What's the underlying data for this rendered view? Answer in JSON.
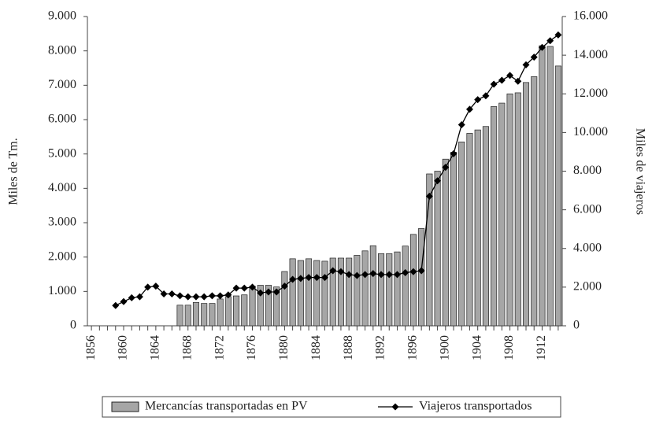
{
  "chart_data": {
    "type": "bar-line",
    "y_label": "Miles de Tm.",
    "y2_label": "Miles de viajeros",
    "categories": [
      "1856",
      null,
      null,
      null,
      "1860",
      null,
      null,
      null,
      "1864",
      null,
      null,
      null,
      "1868",
      null,
      null,
      null,
      "1872",
      null,
      null,
      null,
      "1876",
      null,
      null,
      null,
      "1880",
      null,
      null,
      null,
      "1884",
      null,
      null,
      null,
      "1888",
      null,
      null,
      null,
      "1892",
      null,
      null,
      null,
      "1896",
      null,
      null,
      null,
      "1900",
      null,
      null,
      null,
      "1904",
      null,
      null,
      null,
      "1908",
      null,
      null,
      null,
      "1912",
      null,
      null
    ],
    "series": [
      {
        "name": "Mercancías transportadas en PV",
        "type": "bar",
        "color": "#a6a6a6",
        "values": [
          null,
          null,
          null,
          null,
          null,
          null,
          null,
          null,
          null,
          null,
          null,
          600,
          600,
          680,
          650,
          650,
          780,
          850,
          870,
          900,
          1150,
          1180,
          1180,
          1130,
          1580,
          1950,
          1900,
          1950,
          1900,
          1880,
          1970,
          1970,
          1970,
          2050,
          2180,
          2330,
          2100,
          2100,
          2150,
          2320,
          2660,
          2830,
          4420,
          4500,
          4850,
          5050,
          5350,
          5600,
          5700,
          5800,
          6380,
          6480,
          6750,
          6780,
          7080,
          7250,
          8150,
          8130,
          7560
        ]
      },
      {
        "name": "Viajeros transportados",
        "type": "line",
        "color": "#000000",
        "axis": "y2",
        "values": [
          null,
          null,
          null,
          1050,
          1250,
          1450,
          1500,
          2000,
          2050,
          1650,
          1650,
          1550,
          1500,
          1500,
          1500,
          1550,
          1550,
          1600,
          1950,
          1950,
          2000,
          1700,
          1750,
          1750,
          2050,
          2400,
          2450,
          2500,
          2500,
          2500,
          2850,
          2800,
          2650,
          2600,
          2650,
          2700,
          2650,
          2650,
          2650,
          2750,
          2800,
          2850,
          6700,
          7500,
          8200,
          8900,
          10400,
          11200,
          11700,
          11900,
          12500,
          12700,
          12950,
          12650,
          13500,
          13900,
          14400,
          14750,
          15050
        ]
      }
    ],
    "ylim": [
      0,
      9000
    ],
    "yticks": [
      0,
      {
        "value": 1000,
        "label": "1.000"
      },
      {
        "value": 2000,
        "label": "2.000"
      },
      {
        "value": 3000,
        "label": "3.000"
      },
      {
        "value": 4000,
        "label": "4.000"
      },
      {
        "value": 5000,
        "label": "5.000"
      },
      {
        "value": 6000,
        "label": "6.000"
      },
      {
        "value": 7000,
        "label": "7.000"
      },
      {
        "value": 8000,
        "label": "8.000"
      },
      {
        "value": 9000,
        "label": "9.000"
      }
    ],
    "y2lim": [
      0,
      16000
    ],
    "y2ticks": [
      0,
      {
        "value": 2000,
        "label": "2.000"
      },
      {
        "value": 4000,
        "label": "4.000"
      },
      {
        "value": 6000,
        "label": "6.000"
      },
      {
        "value": 8000,
        "label": "8.000"
      },
      {
        "value": 10000,
        "label": "10.000"
      },
      {
        "value": 12000,
        "label": "12.000"
      },
      {
        "value": 14000,
        "label": "14.000"
      },
      {
        "value": 16000,
        "label": "16.000"
      }
    ],
    "grid": false,
    "legend": "bottom"
  }
}
